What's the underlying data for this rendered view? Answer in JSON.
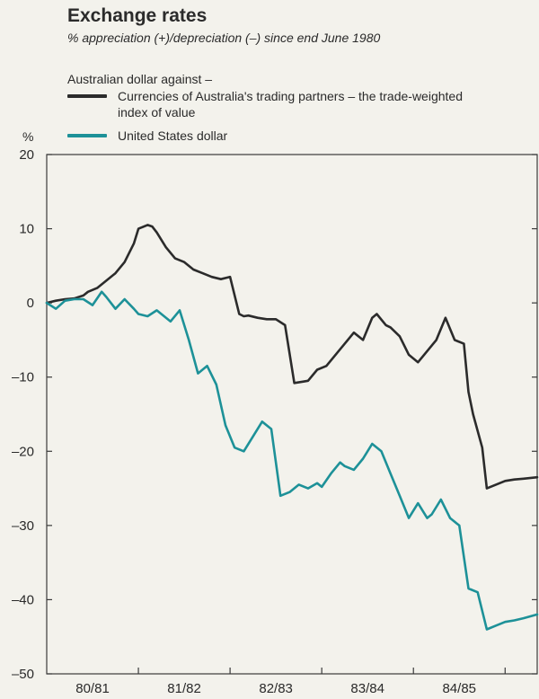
{
  "colors": {
    "twi": "#2b2b2b",
    "usd": "#1d9198",
    "frame": "#3a3a3a",
    "background": "#f3f2ec"
  },
  "chart_data": {
    "type": "line",
    "title": "Exchange rates",
    "subtitle": "% appreciation (+)/depreciation (–) since end June 1980",
    "legend_title": "Australian dollar against –",
    "ylabel": "%",
    "ylim": [
      -50,
      20
    ],
    "yticks": [
      20,
      10,
      0,
      -10,
      -20,
      -30,
      -40,
      -50
    ],
    "ytick_labels": [
      "20",
      "10",
      "0",
      "–10",
      "–20",
      "–30",
      "–40",
      "–50"
    ],
    "xlim": [
      0,
      5.35
    ],
    "categories": [
      "80/81",
      "81/82",
      "82/83",
      "83/84",
      "84/85"
    ],
    "series": [
      {
        "name": "Currencies of Australia's trading partners – the trade-weighted index of value",
        "x": [
          0.0,
          0.1,
          0.2,
          0.3,
          0.4,
          0.45,
          0.55,
          0.65,
          0.75,
          0.85,
          0.95,
          1.0,
          1.1,
          1.15,
          1.2,
          1.3,
          1.4,
          1.5,
          1.55,
          1.6,
          1.7,
          1.8,
          1.9,
          2.0,
          2.1,
          2.15,
          2.2,
          2.3,
          2.4,
          2.5,
          2.6,
          2.7,
          2.8,
          2.85,
          2.95,
          3.05,
          3.15,
          3.25,
          3.35,
          3.45,
          3.55,
          3.6,
          3.7,
          3.75,
          3.85,
          3.95,
          4.05,
          4.15,
          4.25,
          4.35,
          4.45,
          4.55,
          4.6,
          4.65,
          4.75,
          4.8,
          4.9,
          5.0,
          5.1,
          5.2,
          5.35
        ],
        "values": [
          0.0,
          0.3,
          0.5,
          0.6,
          1.0,
          1.5,
          2.0,
          3.0,
          4.0,
          5.5,
          8.0,
          10.0,
          10.5,
          10.3,
          9.5,
          7.5,
          6.0,
          5.5,
          5.0,
          4.5,
          4.0,
          3.5,
          3.2,
          3.5,
          -1.5,
          -1.8,
          -1.7,
          -2.0,
          -2.2,
          -2.2,
          -3.0,
          -10.8,
          -10.6,
          -10.5,
          -9.0,
          -8.5,
          -7.0,
          -5.5,
          -4.0,
          -5.0,
          -2.0,
          -1.5,
          -3.0,
          -3.3,
          -4.5,
          -7.0,
          -8.0,
          -6.5,
          -5.0,
          -2.0,
          -5.0,
          -5.5,
          -12.0,
          -15.0,
          -19.5,
          -25.0,
          -24.5,
          -24.0,
          -23.8,
          -23.7,
          -23.5
        ],
        "color": "#2b2b2b"
      },
      {
        "name": "United States dollar",
        "x": [
          0.0,
          0.1,
          0.2,
          0.3,
          0.4,
          0.5,
          0.6,
          0.65,
          0.75,
          0.85,
          0.95,
          1.0,
          1.1,
          1.2,
          1.35,
          1.45,
          1.55,
          1.65,
          1.75,
          1.85,
          1.95,
          2.05,
          2.15,
          2.25,
          2.35,
          2.45,
          2.55,
          2.65,
          2.75,
          2.85,
          2.95,
          3.0,
          3.1,
          3.2,
          3.25,
          3.35,
          3.45,
          3.55,
          3.65,
          3.75,
          3.85,
          3.95,
          4.05,
          4.15,
          4.2,
          4.3,
          4.4,
          4.5,
          4.6,
          4.7,
          4.8,
          4.9,
          5.0,
          5.1,
          5.2,
          5.35
        ],
        "values": [
          0.0,
          -0.8,
          0.3,
          0.5,
          0.5,
          -0.3,
          1.5,
          0.8,
          -0.8,
          0.5,
          -0.8,
          -1.5,
          -1.8,
          -1.0,
          -2.5,
          -1.0,
          -5.0,
          -9.5,
          -8.5,
          -11.0,
          -16.5,
          -19.5,
          -20.0,
          -18.0,
          -16.0,
          -17.0,
          -26.0,
          -25.5,
          -24.5,
          -25.0,
          -24.3,
          -24.8,
          -23.0,
          -21.5,
          -22.0,
          -22.5,
          -21.0,
          -19.0,
          -20.0,
          -23.0,
          -26.0,
          -29.0,
          -27.0,
          -29.0,
          -28.5,
          -26.5,
          -29.0,
          -30.0,
          -38.5,
          -39.0,
          -44.0,
          -43.5,
          -43.0,
          -42.8,
          -42.5,
          -42.0
        ],
        "color": "#1d9198"
      }
    ]
  }
}
